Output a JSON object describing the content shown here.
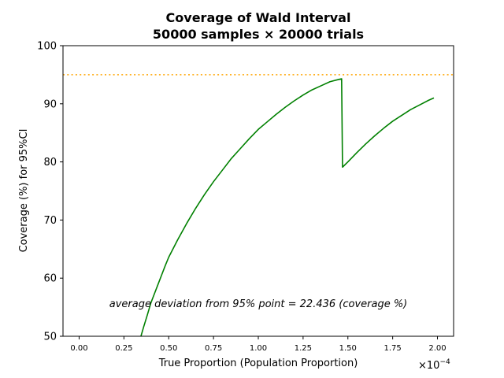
{
  "chart_data": {
    "type": "line",
    "title_line1": "Coverage of Wald Interval",
    "title_line2": "50000 samples × 20000 trials",
    "xlabel": "True Proportion (Population Proportion)",
    "ylabel": "Coverage (%) for 95%CI",
    "x_offset_label": "×10",
    "x_offset_exponent": "−4",
    "annotation": "average deviation from 95% point = 22.436 (coverage %)",
    "xlim": [
      -9e-06,
      0.000209
    ],
    "ylim": [
      50,
      100
    ],
    "xticks": [
      0,
      2.5e-05,
      5e-05,
      7.5e-05,
      0.0001,
      0.000125,
      0.00015,
      0.000175,
      0.0002
    ],
    "xtick_labels": [
      "0.00",
      "0.25",
      "0.50",
      "0.75",
      "1.00",
      "1.25",
      "1.50",
      "1.75",
      "2.00"
    ],
    "yticks": [
      50,
      60,
      70,
      80,
      90,
      100
    ],
    "ytick_labels": [
      "50",
      "60",
      "70",
      "80",
      "90",
      "100"
    ],
    "reference_line": {
      "y": 95,
      "style": "dotted",
      "color": "#ffa500"
    },
    "grid": false,
    "series": [
      {
        "color": "#008000",
        "points": [
          [
            3.45e-05,
            50.0
          ],
          [
            3.6e-05,
            51.6
          ],
          [
            3.8e-05,
            53.6
          ],
          [
            4e-05,
            55.7
          ],
          [
            4.2e-05,
            57.3
          ],
          [
            4.4e-05,
            58.9
          ],
          [
            4.6e-05,
            60.5
          ],
          [
            4.8e-05,
            62.1
          ],
          [
            5e-05,
            63.6
          ],
          [
            5.5e-05,
            66.6
          ],
          [
            6e-05,
            69.4
          ],
          [
            6.5e-05,
            72.0
          ],
          [
            7e-05,
            74.4
          ],
          [
            7.5e-05,
            76.6
          ],
          [
            8e-05,
            78.6
          ],
          [
            8.5e-05,
            80.6
          ],
          [
            9e-05,
            82.3
          ],
          [
            9.5e-05,
            84.0
          ],
          [
            0.0001,
            85.6
          ],
          [
            0.000105,
            86.9
          ],
          [
            0.00011,
            88.2
          ],
          [
            0.000115,
            89.4
          ],
          [
            0.00012,
            90.5
          ],
          [
            0.000125,
            91.5
          ],
          [
            0.00013,
            92.4
          ],
          [
            0.000135,
            93.1
          ],
          [
            0.00014,
            93.8
          ],
          [
            0.000145,
            94.2
          ],
          [
            0.0001465,
            94.3
          ],
          [
            0.000147,
            79.1
          ],
          [
            0.00015,
            80.0
          ],
          [
            0.000155,
            81.6
          ],
          [
            0.00016,
            83.1
          ],
          [
            0.000165,
            84.5
          ],
          [
            0.00017,
            85.8
          ],
          [
            0.000175,
            87.0
          ],
          [
            0.00018,
            88.0
          ],
          [
            0.000185,
            89.0
          ],
          [
            0.00019,
            89.8
          ],
          [
            0.000195,
            90.6
          ],
          [
            0.000198,
            91.0
          ]
        ]
      }
    ]
  }
}
